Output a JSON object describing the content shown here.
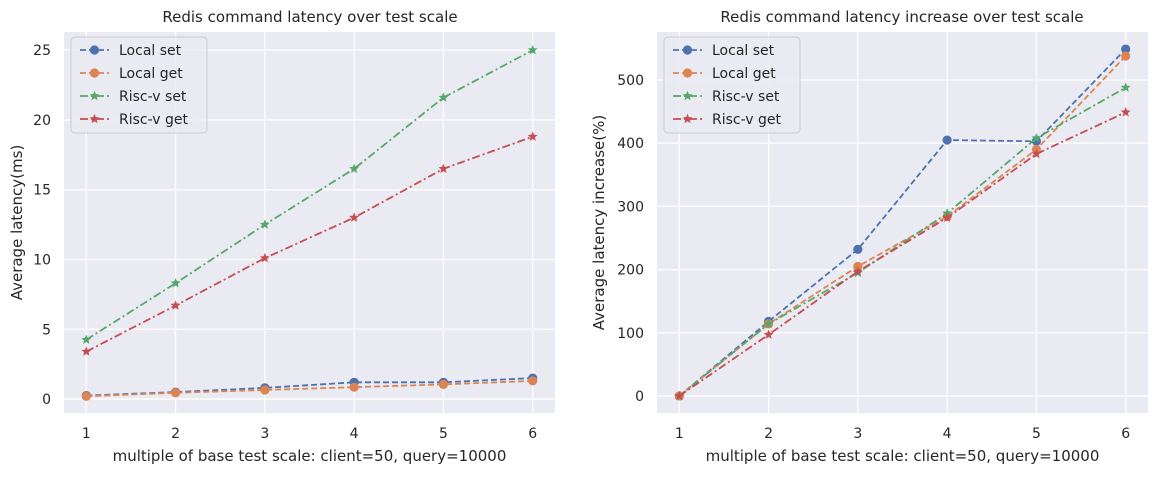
{
  "chart_data": [
    {
      "type": "line",
      "title": "Redis command latency over test scale",
      "xlabel": "multiple of base test scale: client=50, query=10000",
      "ylabel": "Average latency(ms)",
      "x": [
        1,
        2,
        3,
        4,
        5,
        6
      ],
      "xticks": [
        "1",
        "2",
        "3",
        "4",
        "5",
        "6"
      ],
      "xlim": [
        0.75,
        6.25
      ],
      "ylim": [
        -1.0,
        26.3
      ],
      "yticks": [
        0,
        5,
        10,
        15,
        20,
        25
      ],
      "grid": true,
      "legend_position": "top-left",
      "series": [
        {
          "name": "Local set",
          "values": [
            0.25,
            0.5,
            0.8,
            1.2,
            1.2,
            1.5
          ],
          "color": "#4c72b0",
          "dash": "dashed",
          "marker": "circle"
        },
        {
          "name": "Local get",
          "values": [
            0.2,
            0.45,
            0.65,
            0.85,
            1.05,
            1.3
          ],
          "color": "#dd8452",
          "dash": "dashed",
          "marker": "circle"
        },
        {
          "name": "Risc-v set",
          "values": [
            4.25,
            8.3,
            12.5,
            16.5,
            21.6,
            25.0
          ],
          "color": "#55a868",
          "dash": "dashdot",
          "marker": "star"
        },
        {
          "name": "Risc-v get",
          "values": [
            3.4,
            6.7,
            10.1,
            13.0,
            16.5,
            18.8
          ],
          "color": "#c44e52",
          "dash": "dashdot",
          "marker": "star"
        }
      ]
    },
    {
      "type": "line",
      "title": "Redis command latency increase over test scale",
      "xlabel": "multiple of base test scale: client=50, query=10000",
      "ylabel": "Average latency increase(%)",
      "x": [
        1,
        2,
        3,
        4,
        5,
        6
      ],
      "xticks": [
        "1",
        "2",
        "3",
        "4",
        "5",
        "6"
      ],
      "xlim": [
        0.75,
        6.25
      ],
      "ylim": [
        -27,
        576
      ],
      "yticks": [
        0,
        100,
        200,
        300,
        400,
        500
      ],
      "grid": true,
      "legend_position": "top-left",
      "series": [
        {
          "name": "Local set",
          "values": [
            0,
            118,
            232,
            405,
            403,
            549
          ],
          "color": "#4c72b0",
          "dash": "dashed",
          "marker": "circle"
        },
        {
          "name": "Local get",
          "values": [
            0,
            114,
            205,
            284,
            390,
            538
          ],
          "color": "#dd8452",
          "dash": "dashed",
          "marker": "circle"
        },
        {
          "name": "Risc-v set",
          "values": [
            0,
            114,
            195,
            289,
            408,
            488
          ],
          "color": "#55a868",
          "dash": "dashdot",
          "marker": "star"
        },
        {
          "name": "Risc-v get",
          "values": [
            0,
            97,
            197,
            282,
            383,
            449
          ],
          "color": "#c44e52",
          "dash": "dashdot",
          "marker": "star"
        }
      ]
    }
  ]
}
